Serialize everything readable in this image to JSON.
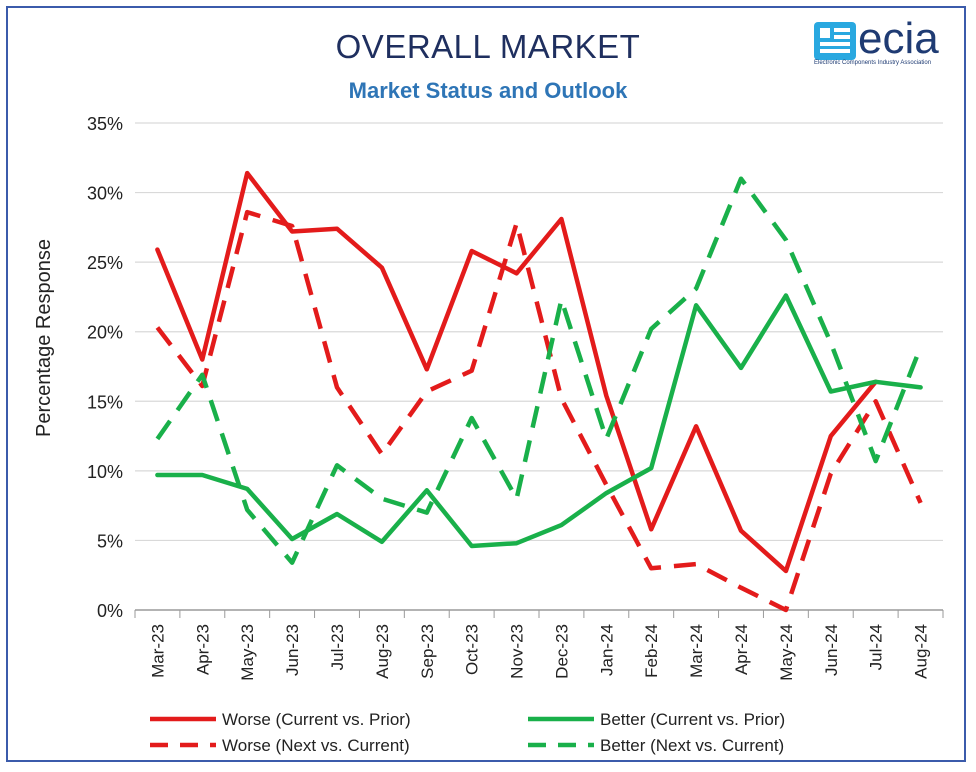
{
  "header": {
    "title": "OVERALL MARKET",
    "subtitle": "Market Status and Outlook"
  },
  "logo": {
    "text": "ecia",
    "tagline": "Electronic Components Industry Association",
    "icon": "ecia-logo-icon"
  },
  "chart_data": {
    "type": "line",
    "title": "OVERALL MARKET",
    "subtitle": "Market Status and Outlook",
    "xlabel": "",
    "ylabel": "Percentage Response",
    "ylim": [
      0,
      35
    ],
    "yticks": [
      "0%",
      "5%",
      "10%",
      "15%",
      "20%",
      "25%",
      "30%",
      "35%"
    ],
    "grid": true,
    "legend_position": "bottom",
    "categories": [
      "Mar-23",
      "Apr-23",
      "May-23",
      "Jun-23",
      "Jul-23",
      "Aug-23",
      "Sep-23",
      "Oct-23",
      "Nov-23",
      "Dec-23",
      "Jan-24",
      "Feb-24",
      "Mar-24",
      "Apr-24",
      "May-24",
      "Jun-24",
      "Jul-24",
      "Aug-24"
    ],
    "series": [
      {
        "name": "Worse (Current vs. Prior)",
        "color": "#e31b1b",
        "dash": "solid",
        "values": [
          25.9,
          18.0,
          31.4,
          27.2,
          27.4,
          24.6,
          17.3,
          25.8,
          24.2,
          28.1,
          15.4,
          5.8,
          13.2,
          5.7,
          2.8,
          12.5,
          16.4,
          null
        ]
      },
      {
        "name": "Better (Current vs. Prior)",
        "color": "#19b04a",
        "dash": "solid",
        "values": [
          9.7,
          9.7,
          8.7,
          5.1,
          6.9,
          4.9,
          8.6,
          4.6,
          4.8,
          6.1,
          8.4,
          10.2,
          21.9,
          17.4,
          22.6,
          15.7,
          16.4,
          16.0
        ]
      },
      {
        "name": "Worse (Next vs. Current)",
        "color": "#e31b1b",
        "dash": "dashed",
        "values": [
          20.3,
          16.1,
          28.6,
          27.6,
          16.0,
          11.2,
          15.7,
          17.2,
          27.8,
          15.2,
          9.0,
          3.0,
          3.3,
          1.6,
          0.0,
          9.8,
          15.0,
          7.7
        ]
      },
      {
        "name": "Better (Next vs. Current)",
        "color": "#19b04a",
        "dash": "dashed",
        "values": [
          12.3,
          16.9,
          7.2,
          3.4,
          10.4,
          8.0,
          7.0,
          13.8,
          8.0,
          22.3,
          12.3,
          20.2,
          23.1,
          31.0,
          26.6,
          19.2,
          10.7,
          18.9
        ]
      }
    ]
  }
}
